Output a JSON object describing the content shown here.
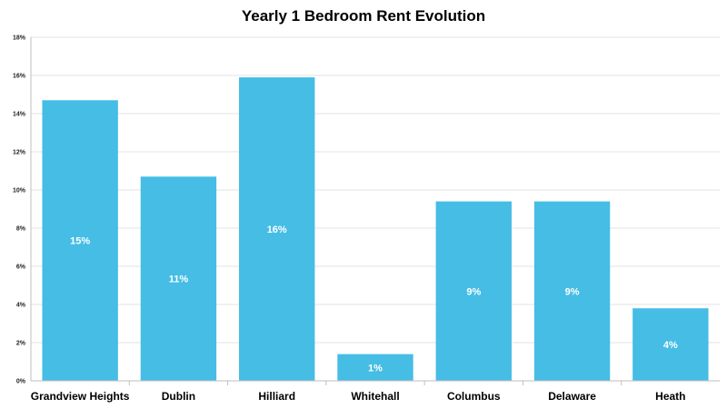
{
  "chart_data": {
    "type": "bar",
    "title": "Yearly 1 Bedroom Rent Evolution",
    "xlabel": "",
    "ylabel": "",
    "categories": [
      "Grandview Heights",
      "Dublin",
      "Hilliard",
      "Whitehall",
      "Columbus",
      "Delaware",
      "Heath"
    ],
    "values": [
      14.7,
      10.7,
      15.9,
      1.4,
      9.4,
      9.4,
      3.8
    ],
    "data_labels": [
      "15%",
      "11%",
      "16%",
      "1%",
      "9%",
      "9%",
      "4%"
    ],
    "ylim": [
      0,
      18
    ],
    "yticks": [
      0,
      2,
      4,
      6,
      8,
      10,
      12,
      14,
      16,
      18
    ],
    "ytick_labels": [
      "0%",
      "2%",
      "4%",
      "6%",
      "8%",
      "10%",
      "12%",
      "14%",
      "16%",
      "18%"
    ],
    "grid": true,
    "legend": "none",
    "colors": {
      "bar": "#45BDE5",
      "grid": "#E3E3E3",
      "axis": "#BFBFBF"
    }
  }
}
